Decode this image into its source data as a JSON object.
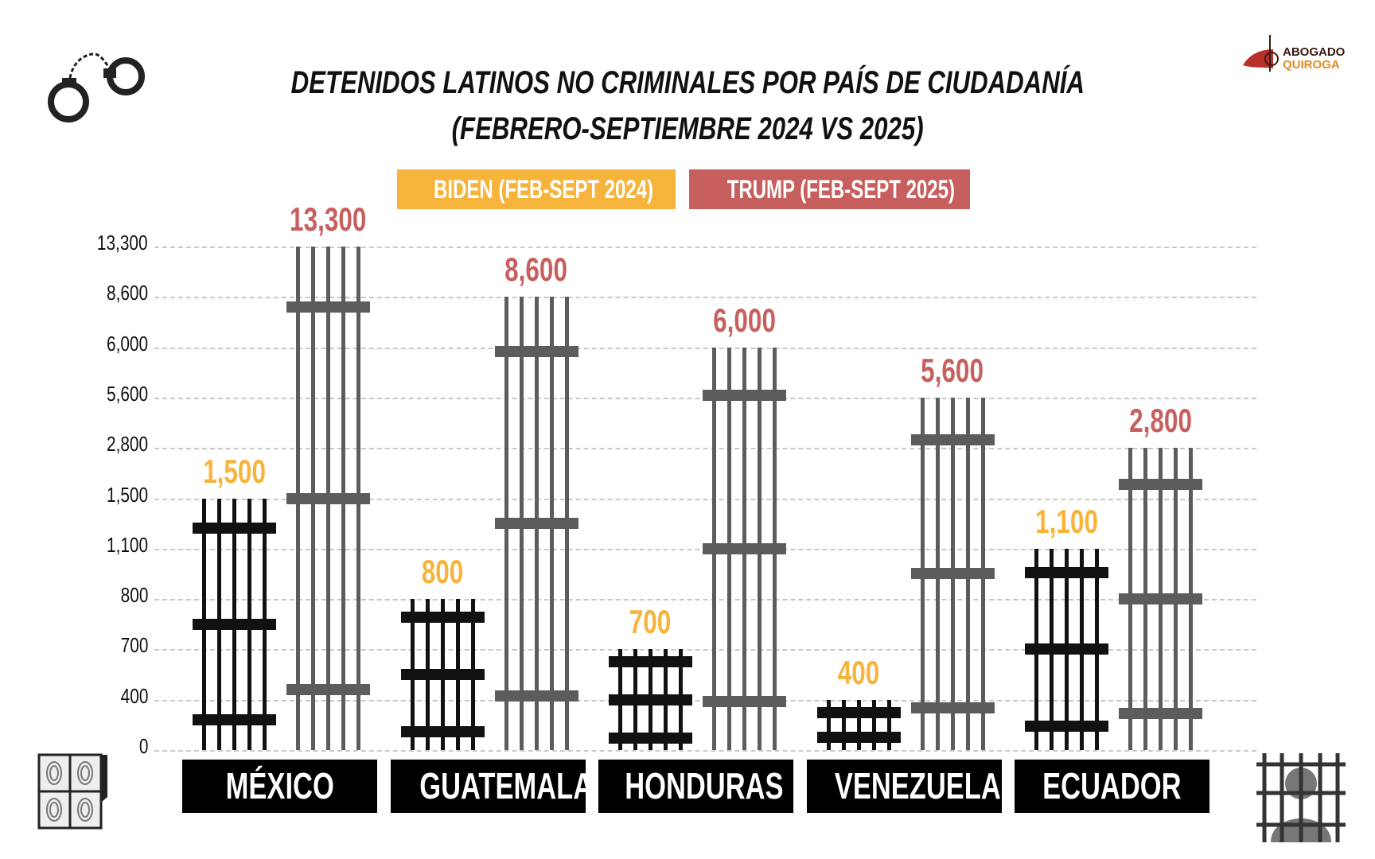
{
  "chart_data": {
    "type": "bar",
    "title": "DETENIDOS LATINOS NO CRIMINALES POR PAÍS DE CIUDADANÍA",
    "subtitle": "(FEBRERO-SEPTIEMBRE 2024 VS 2025)",
    "categories": [
      "MÉXICO",
      "GUATEMALA",
      "HONDURAS",
      "VENEZUELA",
      "ECUADOR"
    ],
    "series": [
      {
        "name": "BIDEN (FEB-SEPT 2024)",
        "values": [
          1500,
          800,
          700,
          400,
          1100
        ],
        "labels": [
          "1,500",
          "800",
          "700",
          "400",
          "1,100"
        ],
        "color": "#f6b43c"
      },
      {
        "name": "TRUMP (FEB-SEPT 2025)",
        "values": [
          13300,
          8600,
          6000,
          5600,
          2800
        ],
        "labels": [
          "13,300",
          "8,600",
          "6,000",
          "5,600",
          "2,800"
        ],
        "color": "#c85f5f"
      }
    ],
    "yticks": [
      "0",
      "400",
      "700",
      "800",
      "1,100",
      "1,500",
      "2,800",
      "5,600",
      "6,000",
      "8,600",
      "13,300"
    ],
    "ytick_values": [
      0,
      400,
      700,
      800,
      1100,
      1500,
      2800,
      5600,
      6000,
      8600,
      13300
    ],
    "yscale": "ordinal (ticks at data values, evenly spaced)",
    "grid": true,
    "legend_position": "top-center",
    "bar_colors": {
      "biden_bars": "#111111",
      "trump_bars": "#5c5c5c"
    }
  },
  "logo": {
    "line1": "ABOGADO",
    "line2": "QUIROGA"
  }
}
